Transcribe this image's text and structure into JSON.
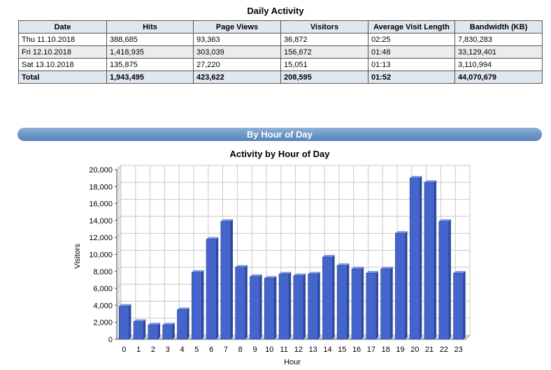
{
  "daily": {
    "title": "Daily Activity",
    "headers": [
      "Date",
      "Hits",
      "Page Views",
      "Visitors",
      "Average Visit Length",
      "Bandwidth (KB)"
    ],
    "rows": [
      [
        "Thu 11.10.2018",
        "388,685",
        "93,363",
        "36,872",
        "02:25",
        "7,830,283"
      ],
      [
        "Fri 12.10.2018",
        "1,418,935",
        "303,039",
        "156,672",
        "01:48",
        "33,129,401"
      ],
      [
        "Sat 13.10.2018",
        "135,875",
        "27,220",
        "15,051",
        "01:13",
        "3,110,994"
      ]
    ],
    "total": [
      "Total",
      "1,943,495",
      "423,622",
      "208,595",
      "01:52",
      "44,070,679"
    ]
  },
  "section_bar": "By Hour of Day",
  "chart_data": {
    "type": "bar",
    "title": "Activity by Hour of Day",
    "xlabel": "Hour",
    "ylabel": "Visitors",
    "categories": [
      "0",
      "1",
      "2",
      "3",
      "4",
      "5",
      "6",
      "7",
      "8",
      "9",
      "10",
      "11",
      "12",
      "13",
      "14",
      "15",
      "16",
      "17",
      "18",
      "19",
      "20",
      "21",
      "22",
      "23"
    ],
    "values": [
      3900,
      2100,
      1700,
      1700,
      3500,
      7900,
      11800,
      13900,
      8500,
      7400,
      7200,
      7700,
      7500,
      7700,
      9700,
      8700,
      8300,
      7800,
      8300,
      12500,
      19000,
      18500,
      13900,
      7800
    ],
    "ylim": [
      0,
      20000
    ],
    "yticks": [
      "0",
      "2,000",
      "4,000",
      "6,000",
      "8,000",
      "10,000",
      "12,000",
      "14,000",
      "16,000",
      "18,000",
      "20,000"
    ],
    "grid": true,
    "colors": {
      "bar_front": "#4466cc",
      "bar_top": "#7a94e0",
      "bar_side": "#2e4a9e",
      "grid": "#c8c8c8"
    }
  }
}
